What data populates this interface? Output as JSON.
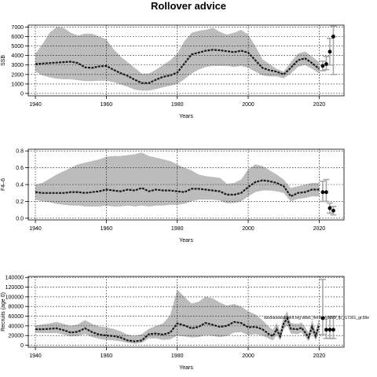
{
  "figure": {
    "title": "Rollover advice"
  },
  "chart_data": [
    {
      "type": "line",
      "ylabel": "SSB",
      "xlabel": "Years",
      "xlim": [
        1938,
        2027
      ],
      "ylim": [
        -250,
        7200
      ],
      "xticks": [
        1940,
        1960,
        1980,
        2000,
        2020
      ],
      "yticks": [
        0,
        1000,
        2000,
        3000,
        4000,
        5000,
        6000,
        7000
      ],
      "grid": true,
      "x": [
        1940,
        1942,
        1944,
        1946,
        1948,
        1950,
        1952,
        1954,
        1956,
        1958,
        1960,
        1962,
        1964,
        1966,
        1968,
        1970,
        1972,
        1974,
        1976,
        1978,
        1980,
        1982,
        1984,
        1986,
        1988,
        1990,
        1992,
        1994,
        1996,
        1998,
        2000,
        2002,
        2004,
        2006,
        2008,
        2010,
        2012,
        2014,
        2016,
        2018,
        2020
      ],
      "median": [
        3100,
        3150,
        3200,
        3250,
        3300,
        3350,
        3200,
        2750,
        2700,
        2850,
        2900,
        2500,
        2150,
        1850,
        1450,
        1100,
        1100,
        1450,
        1750,
        1900,
        2200,
        3150,
        4100,
        4300,
        4500,
        4600,
        4550,
        4450,
        4350,
        4500,
        4300,
        3500,
        2700,
        2450,
        2300,
        2000,
        2700,
        3500,
        3700,
        3200,
        2600
      ],
      "upper": [
        4200,
        5200,
        6400,
        7000,
        6900,
        6400,
        6100,
        6300,
        6300,
        6000,
        5700,
        4700,
        3900,
        3300,
        2700,
        2100,
        2100,
        2500,
        3000,
        3500,
        4200,
        5500,
        6400,
        6600,
        6700,
        6900,
        6500,
        6200,
        6400,
        6700,
        6200,
        5000,
        3600,
        3100,
        2600,
        2300,
        3300,
        4200,
        4400,
        3900,
        3300
      ],
      "lower": [
        2300,
        1900,
        1700,
        1550,
        1500,
        1500,
        1400,
        1300,
        1300,
        1350,
        1350,
        1200,
        950,
        700,
        400,
        300,
        300,
        450,
        650,
        800,
        1000,
        1500,
        2100,
        2500,
        2800,
        2900,
        2900,
        2900,
        2800,
        2900,
        2700,
        2300,
        1900,
        1800,
        1800,
        1600,
        2100,
        2800,
        3000,
        2600,
        2100
      ],
      "forecast": {
        "points": [
          [
            2021,
            2900
          ],
          [
            2022,
            3100
          ],
          [
            2023,
            4400
          ],
          [
            2024,
            6000
          ]
        ],
        "upper": [
          3400,
          3900,
          5800,
          7100
        ],
        "lower": [
          2400,
          2500,
          3000,
          2000
        ]
      }
    },
    {
      "type": "line",
      "ylabel": "F4–6",
      "xlabel": "Years",
      "xlim": [
        1938,
        2027
      ],
      "ylim": [
        -0.02,
        0.82
      ],
      "xticks": [
        1940,
        1960,
        1980,
        2000,
        2020
      ],
      "yticks": [
        0.0,
        0.2,
        0.4,
        0.6,
        0.8
      ],
      "ytick_labels": [
        "0.0",
        "0.2",
        "0.4",
        "0.6",
        "0.8"
      ],
      "grid": true,
      "x": [
        1940,
        1942,
        1944,
        1946,
        1948,
        1950,
        1952,
        1954,
        1956,
        1958,
        1960,
        1962,
        1964,
        1966,
        1968,
        1970,
        1972,
        1974,
        1976,
        1978,
        1980,
        1982,
        1984,
        1986,
        1988,
        1990,
        1992,
        1994,
        1996,
        1998,
        2000,
        2002,
        2004,
        2006,
        2008,
        2010,
        2012,
        2014,
        2016,
        2018,
        2020
      ],
      "median": [
        0.31,
        0.3,
        0.3,
        0.3,
        0.3,
        0.31,
        0.31,
        0.3,
        0.31,
        0.32,
        0.34,
        0.33,
        0.32,
        0.34,
        0.33,
        0.36,
        0.32,
        0.34,
        0.33,
        0.33,
        0.32,
        0.31,
        0.35,
        0.35,
        0.34,
        0.33,
        0.32,
        0.28,
        0.28,
        0.3,
        0.37,
        0.43,
        0.45,
        0.44,
        0.42,
        0.38,
        0.26,
        0.3,
        0.31,
        0.34,
        0.34
      ],
      "upper": [
        0.4,
        0.42,
        0.47,
        0.52,
        0.56,
        0.6,
        0.64,
        0.66,
        0.68,
        0.7,
        0.73,
        0.74,
        0.74,
        0.75,
        0.76,
        0.78,
        0.74,
        0.72,
        0.7,
        0.68,
        0.64,
        0.6,
        0.57,
        0.52,
        0.5,
        0.49,
        0.48,
        0.41,
        0.42,
        0.46,
        0.58,
        0.64,
        0.62,
        0.57,
        0.52,
        0.46,
        0.36,
        0.38,
        0.4,
        0.42,
        0.42
      ],
      "lower": [
        0.22,
        0.2,
        0.19,
        0.17,
        0.16,
        0.15,
        0.15,
        0.14,
        0.14,
        0.14,
        0.15,
        0.14,
        0.14,
        0.15,
        0.14,
        0.15,
        0.14,
        0.15,
        0.15,
        0.16,
        0.16,
        0.17,
        0.2,
        0.22,
        0.22,
        0.22,
        0.21,
        0.18,
        0.18,
        0.2,
        0.26,
        0.31,
        0.33,
        0.33,
        0.32,
        0.3,
        0.2,
        0.23,
        0.24,
        0.26,
        0.26
      ],
      "forecast": {
        "points": [
          [
            2021,
            0.31
          ],
          [
            2022,
            0.31
          ],
          [
            2023,
            0.12
          ],
          [
            2024,
            0.09
          ]
        ],
        "upper": [
          0.44,
          0.46,
          0.18,
          0.14
        ],
        "lower": [
          0.2,
          0.2,
          0.06,
          0.04
        ]
      }
    },
    {
      "type": "line",
      "ylabel": "Recruits (age 0)",
      "xlabel": "Years",
      "xlim": [
        1938,
        2027
      ],
      "ylim": [
        -4000,
        142000
      ],
      "xticks": [
        1940,
        1960,
        1980,
        2000,
        2020
      ],
      "yticks": [
        0,
        20000,
        40000,
        60000,
        80000,
        100000,
        120000,
        140000
      ],
      "grid": true,
      "annotation": "stockassessment.org wbss_herring_2022_fp_r17301_gt:58e",
      "x": [
        1940,
        1942,
        1944,
        1946,
        1948,
        1950,
        1952,
        1954,
        1956,
        1958,
        1960,
        1962,
        1964,
        1966,
        1968,
        1970,
        1972,
        1974,
        1976,
        1978,
        1980,
        1982,
        1984,
        1986,
        1988,
        1990,
        1992,
        1994,
        1996,
        1998,
        2000,
        2002,
        2004,
        2006,
        2007,
        2008,
        2009,
        2010,
        2011,
        2012,
        2014,
        2015,
        2016,
        2017,
        2018,
        2019,
        2020
      ],
      "median": [
        33000,
        33000,
        34000,
        35000,
        31000,
        26000,
        28000,
        35000,
        27000,
        22000,
        20000,
        19000,
        16000,
        10000,
        8000,
        10000,
        23000,
        24000,
        22000,
        26000,
        45000,
        41000,
        35000,
        38000,
        46000,
        42000,
        38000,
        40000,
        48000,
        46000,
        37000,
        38000,
        33000,
        22000,
        19000,
        33000,
        18000,
        45000,
        55000,
        34000,
        33000,
        36000,
        27000,
        16000,
        38000,
        19000,
        42000
      ],
      "upper": [
        41000,
        43000,
        45000,
        48000,
        44000,
        40000,
        43000,
        52000,
        44000,
        39000,
        37000,
        34000,
        29000,
        22000,
        19000,
        23000,
        34000,
        40000,
        45000,
        62000,
        115000,
        100000,
        86000,
        90000,
        100000,
        97000,
        88000,
        82000,
        85000,
        80000,
        70000,
        64000,
        52000,
        37000,
        32000,
        46000,
        30000,
        58000,
        70000,
        46000,
        44000,
        47000,
        38000,
        26000,
        52000,
        30000,
        57000
      ],
      "lower": [
        26000,
        25000,
        25000,
        25000,
        22000,
        18000,
        19000,
        23000,
        17000,
        13000,
        11000,
        10000,
        8000,
        5000,
        3000,
        5000,
        14000,
        14000,
        11000,
        12000,
        20000,
        18000,
        16000,
        17000,
        21000,
        19000,
        17000,
        19000,
        26000,
        27000,
        21000,
        23000,
        20000,
        13000,
        10000,
        22000,
        10000,
        33000,
        41000,
        24000,
        23000,
        26000,
        18000,
        8000,
        25000,
        10000,
        29000
      ],
      "forecast": {
        "points": [
          [
            2021,
            56000
          ],
          [
            2022,
            32000
          ],
          [
            2023,
            32000
          ],
          [
            2024,
            32000
          ]
        ],
        "upper": [
          136000,
          58000,
          58000,
          58000
        ],
        "lower": [
          22000,
          14000,
          14000,
          14000
        ]
      }
    }
  ]
}
